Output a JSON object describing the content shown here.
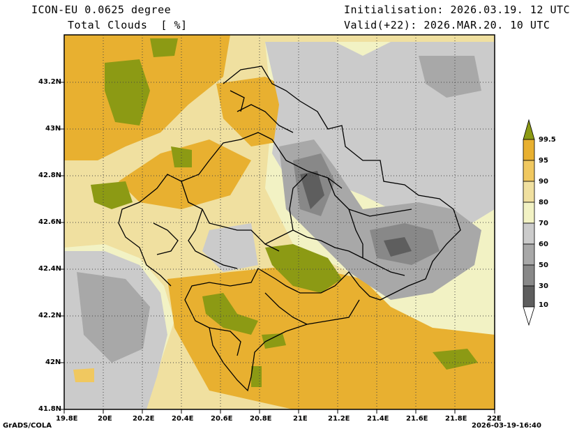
{
  "header": {
    "model": "ICON-EU 0.0625 degree",
    "field": "Total Clouds  [ %]",
    "init": "Initialisation: 2026.03.19. 12 UTC",
    "valid": "Valid(+22): 2026.MAR.20. 10 UTC"
  },
  "axes": {
    "lat_ticks": [
      "43.2N",
      "43N",
      "42.8N",
      "42.6N",
      "42.4N",
      "42.2N",
      "42N",
      "41.8N"
    ],
    "lon_ticks": [
      "19.8E",
      "20E",
      "20.2E",
      "20.4E",
      "20.6E",
      "20.8E",
      "21E",
      "21.2E",
      "21.4E",
      "21.6E",
      "21.8E",
      "22E"
    ]
  },
  "legend": {
    "labels": [
      "99.5",
      "95",
      "90",
      "80",
      "70",
      "60",
      "50",
      "30",
      "10"
    ],
    "colors": [
      "#8c9a14",
      "#e8b030",
      "#f0c860",
      "#f0e0a0",
      "#f2f2c4",
      "#cbcbcb",
      "#a8a8a8",
      "#888888",
      "#5e5e5e",
      "#ffffff"
    ]
  },
  "footer": {
    "left": "GrADS/COLA",
    "right": "2026-03-19-16:40"
  }
}
